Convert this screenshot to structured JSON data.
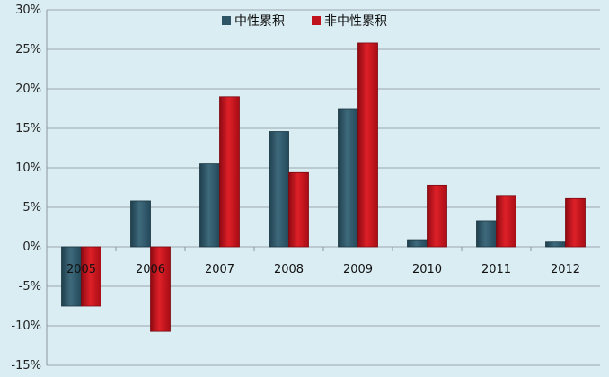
{
  "chart_data": {
    "type": "bar",
    "categories": [
      "2005",
      "2006",
      "2007",
      "2008",
      "2009",
      "2010",
      "2011",
      "2012"
    ],
    "series": [
      {
        "name": "中性累积",
        "color": "#2e5566",
        "values": [
          -7.5,
          5.8,
          10.5,
          14.6,
          17.5,
          0.9,
          3.3,
          0.6
        ]
      },
      {
        "name": "非中性累积",
        "color": "#c0121c",
        "values": [
          -7.5,
          -10.7,
          19.0,
          9.4,
          25.8,
          7.8,
          6.5,
          6.1
        ]
      }
    ],
    "ylim": [
      -15,
      30
    ],
    "yticks": [
      -15,
      -10,
      -5,
      0,
      5,
      10,
      15,
      20,
      25,
      30
    ],
    "ytick_labels": [
      "-15%",
      "-10%",
      "-5%",
      "0%",
      "5%",
      "10%",
      "15%",
      "20%",
      "25%",
      "30%"
    ],
    "title": "",
    "xlabel": "",
    "ylabel": "",
    "grid": true,
    "legend_position": "top"
  }
}
